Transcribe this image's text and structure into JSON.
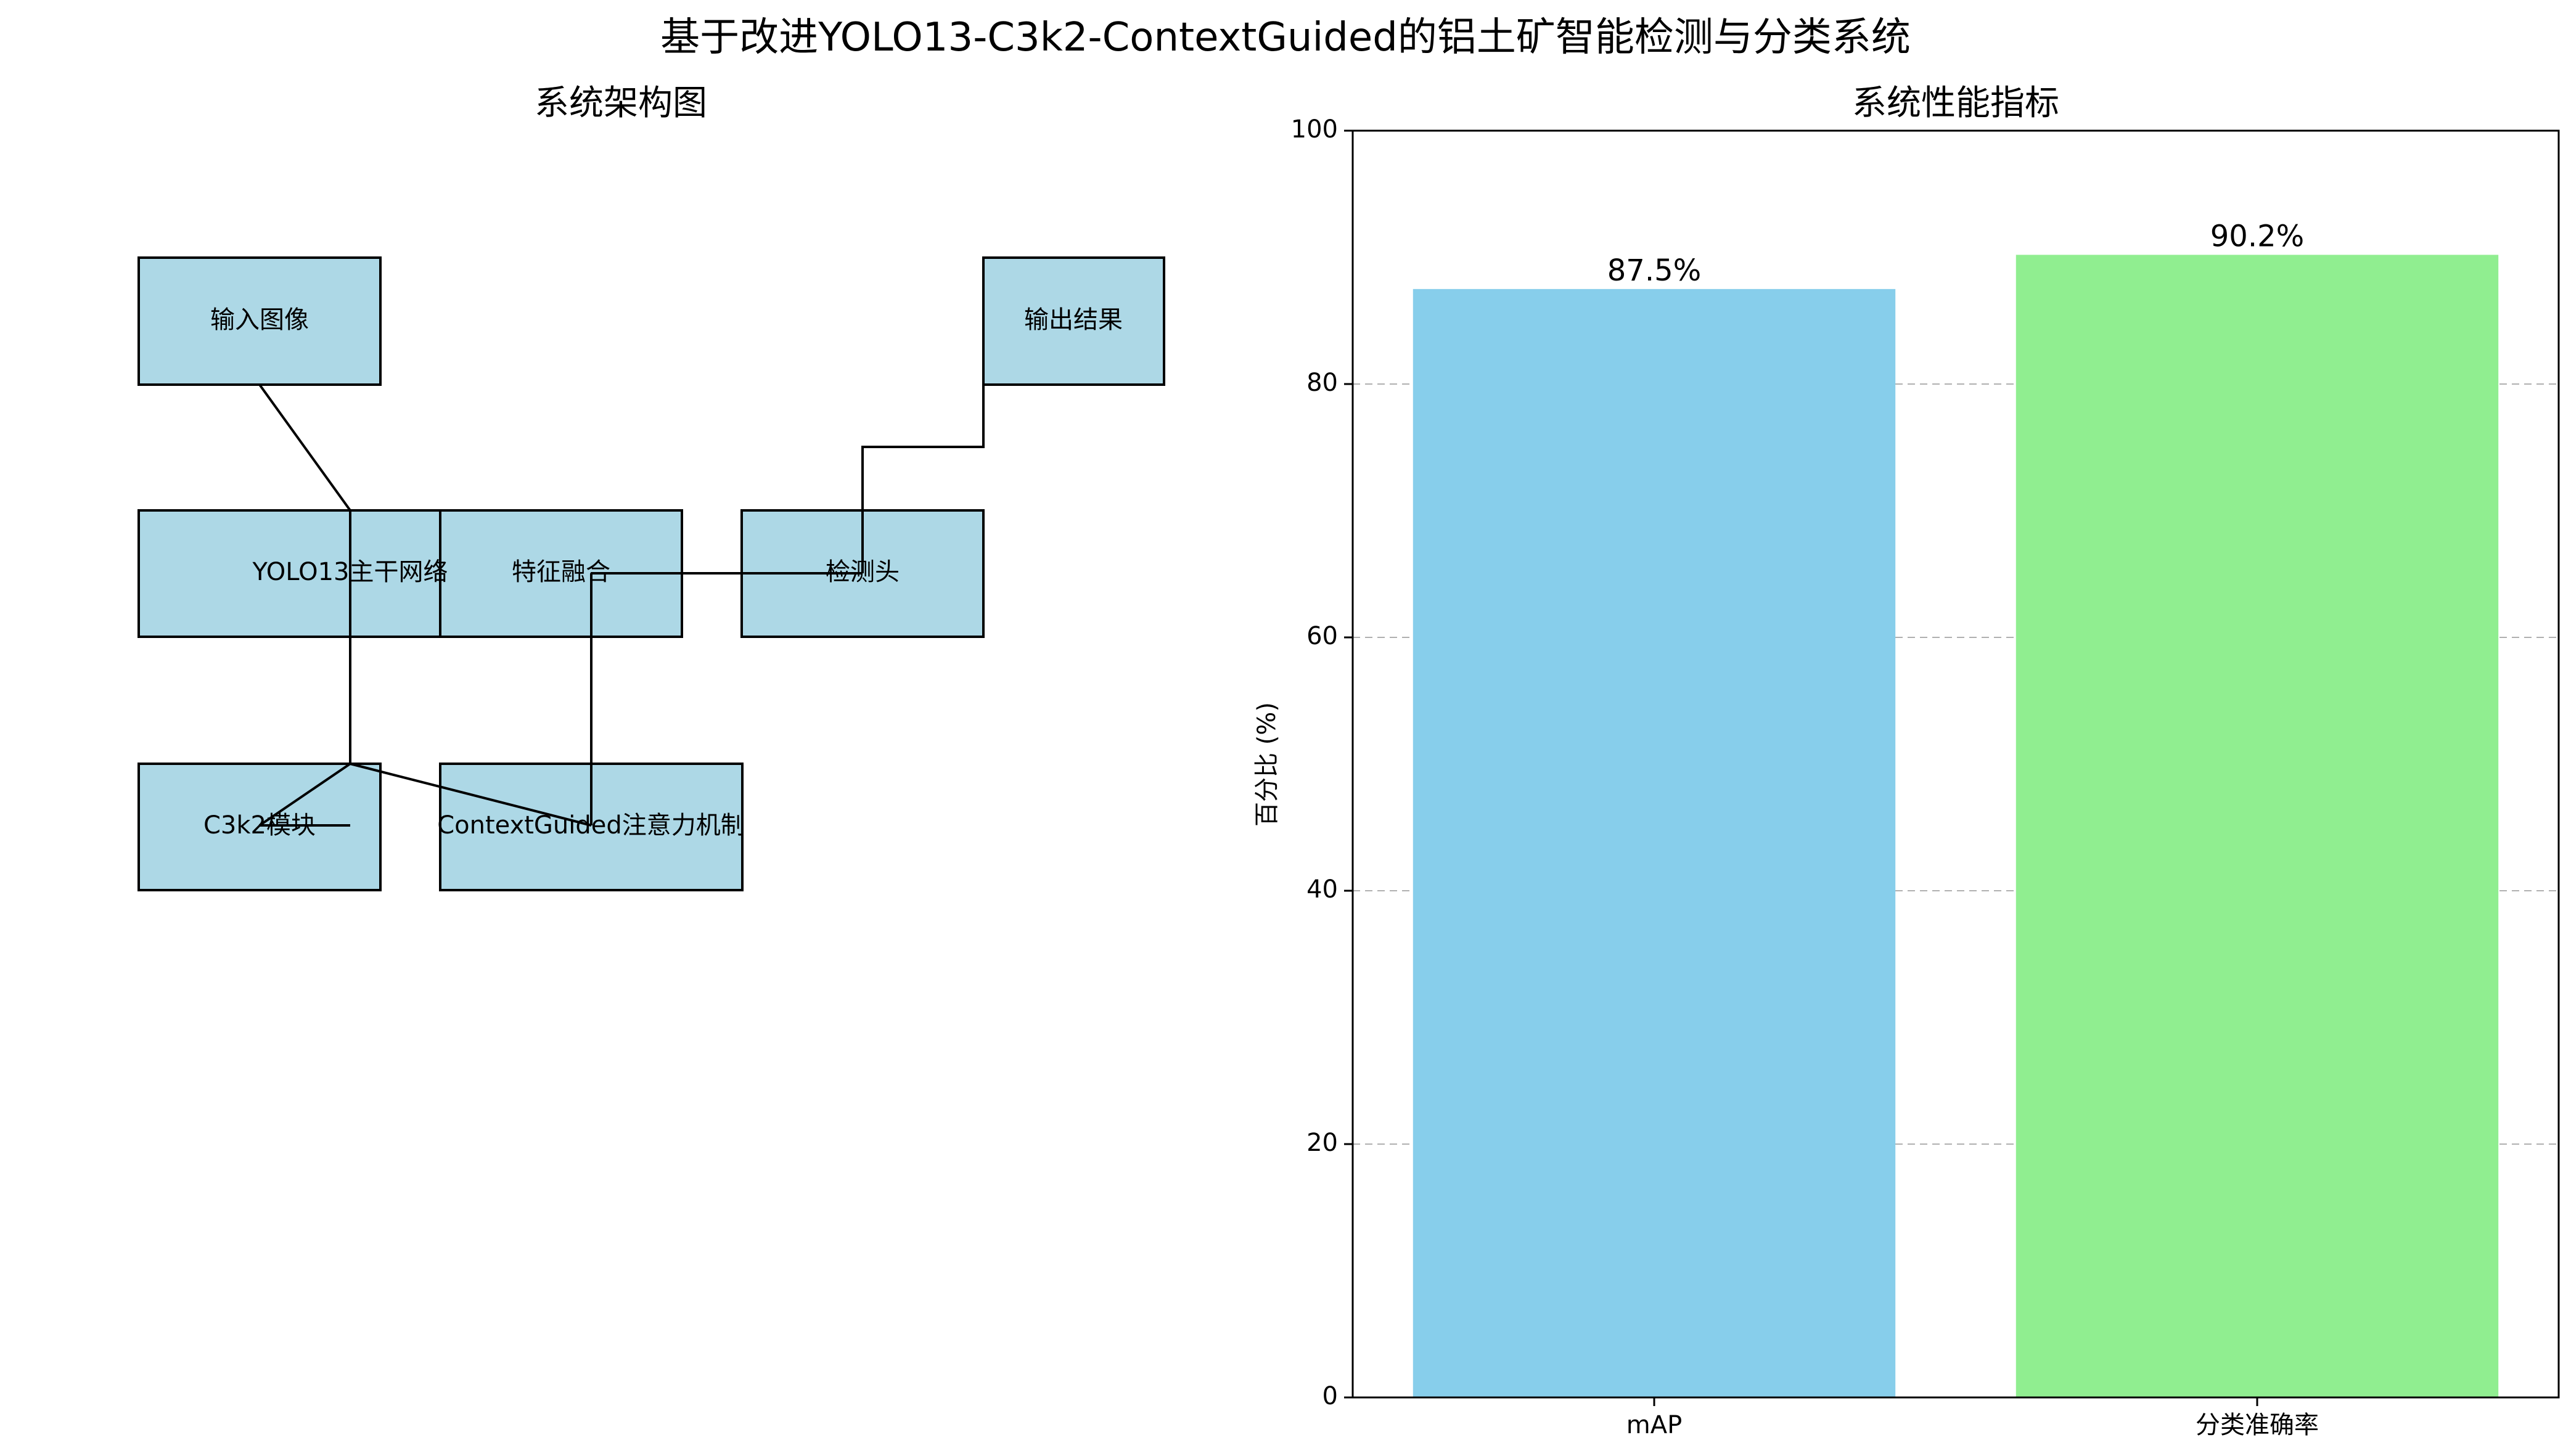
{
  "figure": {
    "title": "基于改进YOLO13-C3k2-ContextGuided的铝土矿智能检测与分类系统"
  },
  "diagram": {
    "title": "系统架构图",
    "box_fill": "#add8e6",
    "box_stroke": "#000000",
    "nodes": [
      {
        "id": "input",
        "label": "输入图像"
      },
      {
        "id": "backbone",
        "label": "YOLO13主干网络"
      },
      {
        "id": "fusion",
        "label": "特征融合"
      },
      {
        "id": "head",
        "label": "检测头"
      },
      {
        "id": "output",
        "label": "输出结果"
      },
      {
        "id": "c3k2",
        "label": "C3k2模块"
      },
      {
        "id": "cg",
        "label": "ContextGuided注意力机制"
      }
    ],
    "edges": [
      {
        "from": "input",
        "to": "backbone"
      },
      {
        "from": "backbone",
        "to": "c3k2"
      },
      {
        "from": "backbone",
        "to": "cg"
      },
      {
        "from": "cg",
        "to": "fusion"
      },
      {
        "from": "fusion",
        "to": "head"
      },
      {
        "from": "head",
        "to": "output"
      }
    ]
  },
  "chart_data": {
    "type": "bar",
    "title": "系统性能指标",
    "categories": [
      "mAP",
      "分类准确率"
    ],
    "values": [
      87.5,
      90.2
    ],
    "value_labels": [
      "87.5%",
      "90.2%"
    ],
    "colors": [
      "#87ceeb",
      "#90ee90"
    ],
    "xlabel": "",
    "ylabel": "百分比 (%)",
    "ylim": [
      0,
      100
    ],
    "yticks": [
      0,
      20,
      40,
      60,
      80,
      100
    ],
    "grid": "y-dashed",
    "legend": "none"
  }
}
